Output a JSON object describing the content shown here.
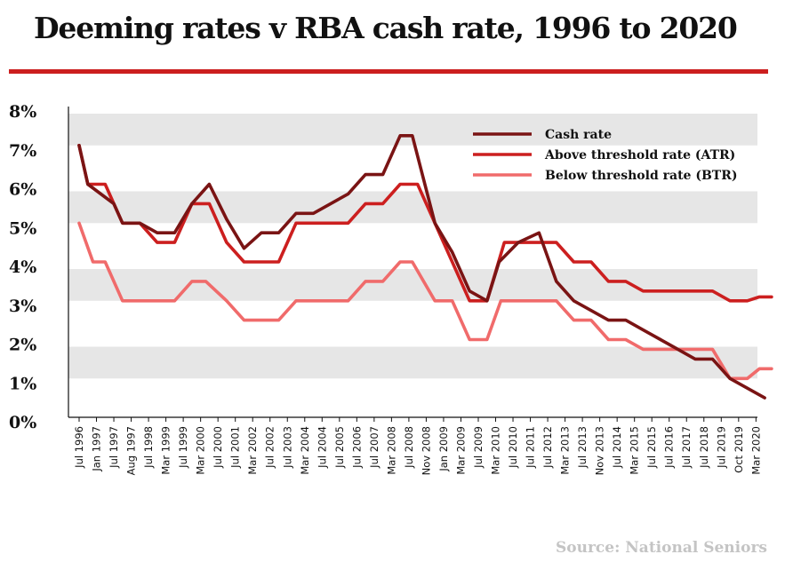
{
  "colors": {
    "accent": "#cc1f1f",
    "band": "#e6e6e6",
    "source": "#c4c4c4"
  },
  "chart_data": {
    "type": "line",
    "title": "Deeming rates v RBA cash rate, 1996 to 2020",
    "source": "Source: National Seniors",
    "xlabel": "",
    "ylabel": "",
    "ylim": [
      0,
      8
    ],
    "yticks": [
      0,
      1,
      2,
      3,
      4,
      5,
      6,
      7,
      8
    ],
    "ytick_suffix": "%",
    "grid": "alternating horizontal bands",
    "legend_position": "top-right",
    "categories": [
      "Jul 1996",
      "Jan 1997",
      "Jul 1997",
      "Aug 1997",
      "Jul 1998",
      "Mar 1999",
      "Jul 1999",
      "Mar 2000",
      "Jul 2000",
      "Jul 2001",
      "Mar 2002",
      "Jul 2002",
      "Jul 2003",
      "Mar 2004",
      "Jul 2004",
      "Jul 2005",
      "Jul 2006",
      "Jul 2007",
      "Mar 2008",
      "Jul 2008",
      "Nov 2008",
      "Jan 2009",
      "Mar 2009",
      "Jul 2009",
      "Mar 2010",
      "Jul 2010",
      "Jul 2011",
      "Jul 2012",
      "Mar 2013",
      "Jul 2013",
      "Nov 2013",
      "Jul 2014",
      "Mar 2015",
      "Jul 2015",
      "Jul 2016",
      "Jul 2017",
      "Jul 2018",
      "Jul 2019",
      "Oct 2019",
      "Mar 2020"
    ],
    "series": [
      {
        "name": "Cash rate",
        "color": "#7a1414",
        "points": [
          [
            0,
            7.0
          ],
          [
            0.5,
            6.0
          ],
          [
            2,
            5.5
          ],
          [
            2.5,
            5.0
          ],
          [
            3.5,
            5.0
          ],
          [
            4.5,
            4.75
          ],
          [
            5.5,
            4.75
          ],
          [
            6.5,
            5.5
          ],
          [
            7.5,
            6.0
          ],
          [
            8.5,
            5.1
          ],
          [
            9.5,
            4.35
          ],
          [
            10.5,
            4.75
          ],
          [
            11.5,
            4.75
          ],
          [
            12.5,
            5.25
          ],
          [
            13.5,
            5.25
          ],
          [
            15.5,
            5.75
          ],
          [
            16.5,
            6.25
          ],
          [
            17.5,
            6.25
          ],
          [
            18.5,
            7.25
          ],
          [
            19.2,
            7.25
          ],
          [
            20.5,
            5.0
          ],
          [
            21.5,
            4.25
          ],
          [
            22.5,
            3.25
          ],
          [
            23.5,
            3.0
          ],
          [
            24.2,
            4.0
          ],
          [
            25.3,
            4.5
          ],
          [
            26.5,
            4.75
          ],
          [
            27.5,
            3.5
          ],
          [
            28.5,
            3.0
          ],
          [
            30.5,
            2.5
          ],
          [
            31.5,
            2.5
          ],
          [
            32.5,
            2.25
          ],
          [
            33.5,
            2.0
          ],
          [
            35.5,
            1.5
          ],
          [
            36.5,
            1.5
          ],
          [
            37.5,
            1.0
          ],
          [
            38.5,
            0.75
          ],
          [
            39.5,
            0.5
          ]
        ]
      },
      {
        "name": "Above threshold rate (ATR)",
        "color": "#cc1f1f",
        "points": [
          [
            0,
            7.0
          ],
          [
            0.5,
            6.0
          ],
          [
            1.5,
            6.0
          ],
          [
            2.5,
            5.0
          ],
          [
            3.5,
            5.0
          ],
          [
            4.5,
            4.5
          ],
          [
            5.5,
            4.5
          ],
          [
            6.5,
            5.5
          ],
          [
            7.5,
            5.5
          ],
          [
            8.5,
            4.5
          ],
          [
            9.5,
            4.0
          ],
          [
            11.5,
            4.0
          ],
          [
            12.5,
            5.0
          ],
          [
            15.5,
            5.0
          ],
          [
            16.5,
            5.5
          ],
          [
            17.5,
            5.5
          ],
          [
            18.5,
            6.0
          ],
          [
            19.5,
            6.0
          ],
          [
            20.5,
            5.0
          ],
          [
            21.5,
            4.0
          ],
          [
            22.5,
            3.0
          ],
          [
            23.5,
            3.0
          ],
          [
            24.5,
            4.5
          ],
          [
            26.5,
            4.5
          ],
          [
            27.5,
            4.5
          ],
          [
            28.5,
            4.0
          ],
          [
            29.5,
            4.0
          ],
          [
            30.5,
            3.5
          ],
          [
            31.5,
            3.5
          ],
          [
            32.5,
            3.25
          ],
          [
            36.5,
            3.25
          ],
          [
            37.5,
            3.0
          ],
          [
            38.5,
            3.0
          ],
          [
            39.2,
            3.1
          ],
          [
            39.9,
            3.1
          ]
        ]
      },
      {
        "name": "Below threshold rate (BTR)",
        "color": "#f06b6b",
        "points": [
          [
            0,
            5.0
          ],
          [
            0.8,
            4.0
          ],
          [
            1.5,
            4.0
          ],
          [
            2.5,
            3.0
          ],
          [
            5.5,
            3.0
          ],
          [
            6.5,
            3.5
          ],
          [
            7.3,
            3.5
          ],
          [
            8.5,
            3.0
          ],
          [
            9.5,
            2.5
          ],
          [
            11.5,
            2.5
          ],
          [
            12.5,
            3.0
          ],
          [
            15.5,
            3.0
          ],
          [
            16.5,
            3.5
          ],
          [
            17.5,
            3.5
          ],
          [
            18.5,
            4.0
          ],
          [
            19.2,
            4.0
          ],
          [
            20.5,
            3.0
          ],
          [
            21.5,
            3.0
          ],
          [
            22.5,
            2.0
          ],
          [
            23.5,
            2.0
          ],
          [
            24.3,
            3.0
          ],
          [
            27.5,
            3.0
          ],
          [
            28.5,
            2.5
          ],
          [
            29.5,
            2.5
          ],
          [
            30.5,
            2.0
          ],
          [
            31.5,
            2.0
          ],
          [
            32.5,
            1.75
          ],
          [
            36.5,
            1.75
          ],
          [
            37.5,
            1.0
          ],
          [
            38.5,
            1.0
          ],
          [
            39.2,
            1.25
          ],
          [
            39.9,
            1.25
          ]
        ]
      }
    ]
  }
}
